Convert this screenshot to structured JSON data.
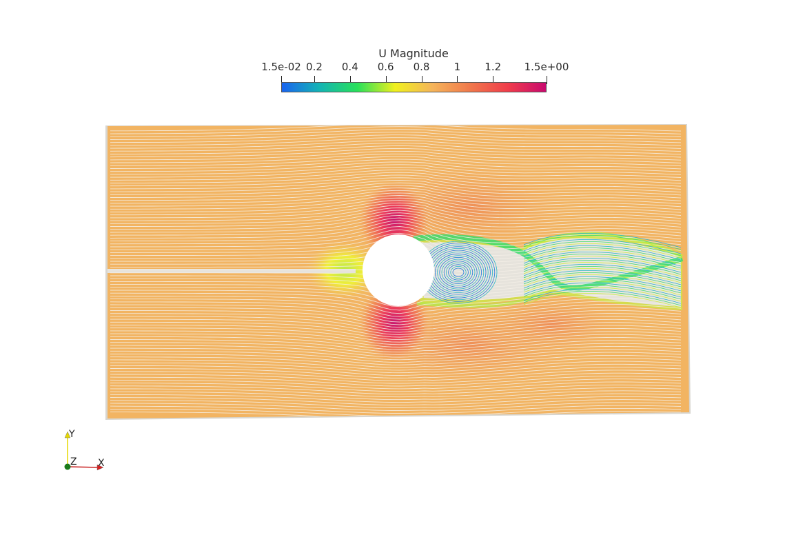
{
  "scalar_bar": {
    "title": "U Magnitude",
    "range": [
      0.015,
      1.5
    ],
    "ticks": [
      {
        "label": "1.5e-02",
        "value": 0.015
      },
      {
        "label": "0.2",
        "value": 0.2
      },
      {
        "label": "0.4",
        "value": 0.4
      },
      {
        "label": "0.6",
        "value": 0.6
      },
      {
        "label": "0.8",
        "value": 0.8
      },
      {
        "label": "1",
        "value": 1.0
      },
      {
        "label": "1.2",
        "value": 1.2
      },
      {
        "label": "1.5e+00",
        "value": 1.5
      }
    ],
    "colormap": [
      "#1a64f0",
      "#14b4b4",
      "#28e05a",
      "#f0f01e",
      "#f5b45a",
      "#f0784b",
      "#f03c4b",
      "#c80a6e"
    ]
  },
  "scene": {
    "background_color": "#ffffff",
    "domain_color": "#f2b462",
    "streamline_color": "#f5f0e8",
    "cylinder_color": "#ffffff",
    "wake_colors": [
      "#1e78dc",
      "#28b4c8",
      "#3cdc6e",
      "#c8f03c"
    ]
  },
  "orientation_axes": {
    "x_label": "X",
    "y_label": "Y",
    "z_label": "Z"
  }
}
